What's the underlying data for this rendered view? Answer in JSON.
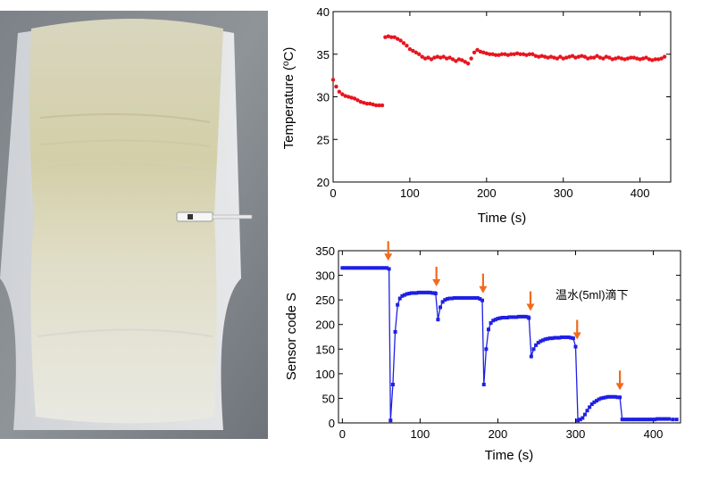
{
  "charts": [
    {
      "type": "scatter",
      "xlabel": "Time (s)",
      "ylabel": "Temperature (°C)",
      "ylabel_unit": "o",
      "xlim": [
        0,
        440
      ],
      "ylim": [
        20,
        40
      ],
      "xticks": [
        0,
        100,
        200,
        300,
        400
      ],
      "yticks": [
        20,
        25,
        30,
        35,
        40
      ],
      "grid": false,
      "series": [
        {
          "color": "#e8141e",
          "marker": "circle",
          "x": [
            0,
            4,
            8,
            12,
            16,
            20,
            24,
            28,
            32,
            36,
            40,
            44,
            48,
            52,
            56,
            60,
            64,
            68,
            72,
            76,
            80,
            84,
            88,
            92,
            96,
            100,
            104,
            108,
            112,
            116,
            120,
            124,
            128,
            132,
            136,
            140,
            144,
            148,
            152,
            156,
            160,
            164,
            168,
            172,
            176,
            180,
            184,
            188,
            192,
            196,
            200,
            204,
            208,
            212,
            216,
            220,
            224,
            228,
            232,
            236,
            240,
            244,
            248,
            252,
            256,
            260,
            264,
            268,
            272,
            276,
            280,
            284,
            288,
            292,
            296,
            300,
            304,
            308,
            312,
            316,
            320,
            324,
            328,
            332,
            336,
            340,
            344,
            348,
            352,
            356,
            360,
            364,
            368,
            372,
            376,
            380,
            384,
            388,
            392,
            396,
            400,
            404,
            408,
            412,
            416,
            420,
            424,
            428,
            432
          ],
          "y": [
            32.0,
            31.2,
            30.6,
            30.3,
            30.1,
            30.0,
            29.9,
            29.8,
            29.6,
            29.4,
            29.3,
            29.2,
            29.2,
            29.1,
            29.0,
            29.0,
            29.0,
            37.0,
            37.1,
            37.0,
            37.0,
            36.8,
            36.6,
            36.3,
            36.0,
            35.6,
            35.4,
            35.2,
            35.0,
            34.7,
            34.5,
            34.6,
            34.4,
            34.6,
            34.7,
            34.6,
            34.7,
            34.5,
            34.6,
            34.4,
            34.2,
            34.4,
            34.3,
            34.1,
            33.9,
            34.5,
            35.2,
            35.5,
            35.3,
            35.2,
            35.1,
            35.0,
            35.0,
            34.9,
            34.9,
            35.0,
            35.0,
            34.9,
            35.0,
            35.0,
            35.1,
            35.0,
            35.0,
            34.9,
            35.0,
            35.0,
            34.8,
            34.7,
            34.8,
            34.7,
            34.6,
            34.7,
            34.6,
            34.5,
            34.7,
            34.5,
            34.6,
            34.7,
            34.8,
            34.6,
            34.7,
            34.8,
            34.7,
            34.5,
            34.6,
            34.6,
            34.8,
            34.6,
            34.5,
            34.7,
            34.6,
            34.4,
            34.5,
            34.6,
            34.5,
            34.4,
            34.5,
            34.6,
            34.6,
            34.5,
            34.4,
            34.5,
            34.6,
            34.4,
            34.3,
            34.4,
            34.4,
            34.5,
            34.7
          ]
        }
      ]
    },
    {
      "type": "line",
      "xlabel": "Time (s)",
      "ylabel": "Sensor code S",
      "xlim": [
        -5,
        435
      ],
      "ylim": [
        0,
        350
      ],
      "xticks": [
        0,
        100,
        200,
        300,
        400
      ],
      "yticks": [
        0,
        50,
        100,
        150,
        200,
        250,
        300,
        350
      ],
      "grid": false,
      "annotation": "温水(5ml)滴下",
      "arrow_color": "#f26a1b",
      "arrow_times": [
        59,
        121,
        181,
        242,
        302,
        357
      ],
      "series": [
        {
          "color": "#1f1fe6",
          "marker": "square",
          "x": [
            0,
            3,
            6,
            9,
            12,
            15,
            18,
            21,
            24,
            27,
            30,
            33,
            36,
            39,
            42,
            45,
            48,
            51,
            54,
            57,
            60,
            62,
            65,
            68,
            71,
            74,
            77,
            80,
            83,
            86,
            89,
            92,
            95,
            98,
            101,
            104,
            107,
            110,
            113,
            116,
            119,
            120,
            123,
            126,
            129,
            132,
            135,
            138,
            141,
            144,
            147,
            150,
            153,
            156,
            159,
            162,
            165,
            168,
            171,
            174,
            177,
            180,
            182,
            185,
            188,
            191,
            194,
            197,
            200,
            203,
            206,
            209,
            212,
            215,
            218,
            221,
            224,
            227,
            230,
            233,
            236,
            239,
            240,
            243,
            246,
            249,
            252,
            255,
            258,
            261,
            264,
            267,
            270,
            273,
            276,
            279,
            282,
            285,
            288,
            291,
            294,
            297,
            300,
            303,
            306,
            309,
            312,
            315,
            318,
            321,
            324,
            327,
            330,
            333,
            336,
            339,
            342,
            345,
            348,
            351,
            354,
            357,
            360,
            363,
            366,
            369,
            372,
            375,
            378,
            381,
            384,
            387,
            390,
            393,
            396,
            399,
            402,
            405,
            408,
            411,
            414,
            417,
            420,
            425,
            430
          ],
          "y": [
            315,
            315,
            315,
            315,
            315,
            315,
            315,
            315,
            315,
            315,
            315,
            315,
            315,
            315,
            315,
            315,
            315,
            315,
            315,
            315,
            313,
            5,
            78,
            185,
            240,
            253,
            258,
            260,
            262,
            263,
            264,
            264,
            264,
            265,
            265,
            265,
            265,
            265,
            265,
            264,
            264,
            263,
            210,
            235,
            246,
            250,
            252,
            253,
            253,
            254,
            254,
            254,
            254,
            254,
            254,
            254,
            254,
            254,
            254,
            254,
            252,
            249,
            78,
            150,
            190,
            203,
            208,
            210,
            212,
            213,
            214,
            214,
            214,
            215,
            215,
            215,
            215,
            216,
            216,
            216,
            216,
            215,
            213,
            135,
            150,
            158,
            163,
            166,
            168,
            170,
            171,
            172,
            172,
            173,
            173,
            173,
            174,
            174,
            174,
            174,
            173,
            172,
            155,
            5,
            7,
            10,
            17,
            25,
            32,
            38,
            42,
            45,
            48,
            50,
            51,
            52,
            53,
            53,
            53,
            53,
            52,
            52,
            7,
            7,
            7,
            7,
            7,
            7,
            7,
            7,
            7,
            7,
            7,
            7,
            7,
            7,
            7,
            8,
            8,
            8,
            8,
            8,
            8,
            7,
            7
          ]
        }
      ]
    }
  ]
}
